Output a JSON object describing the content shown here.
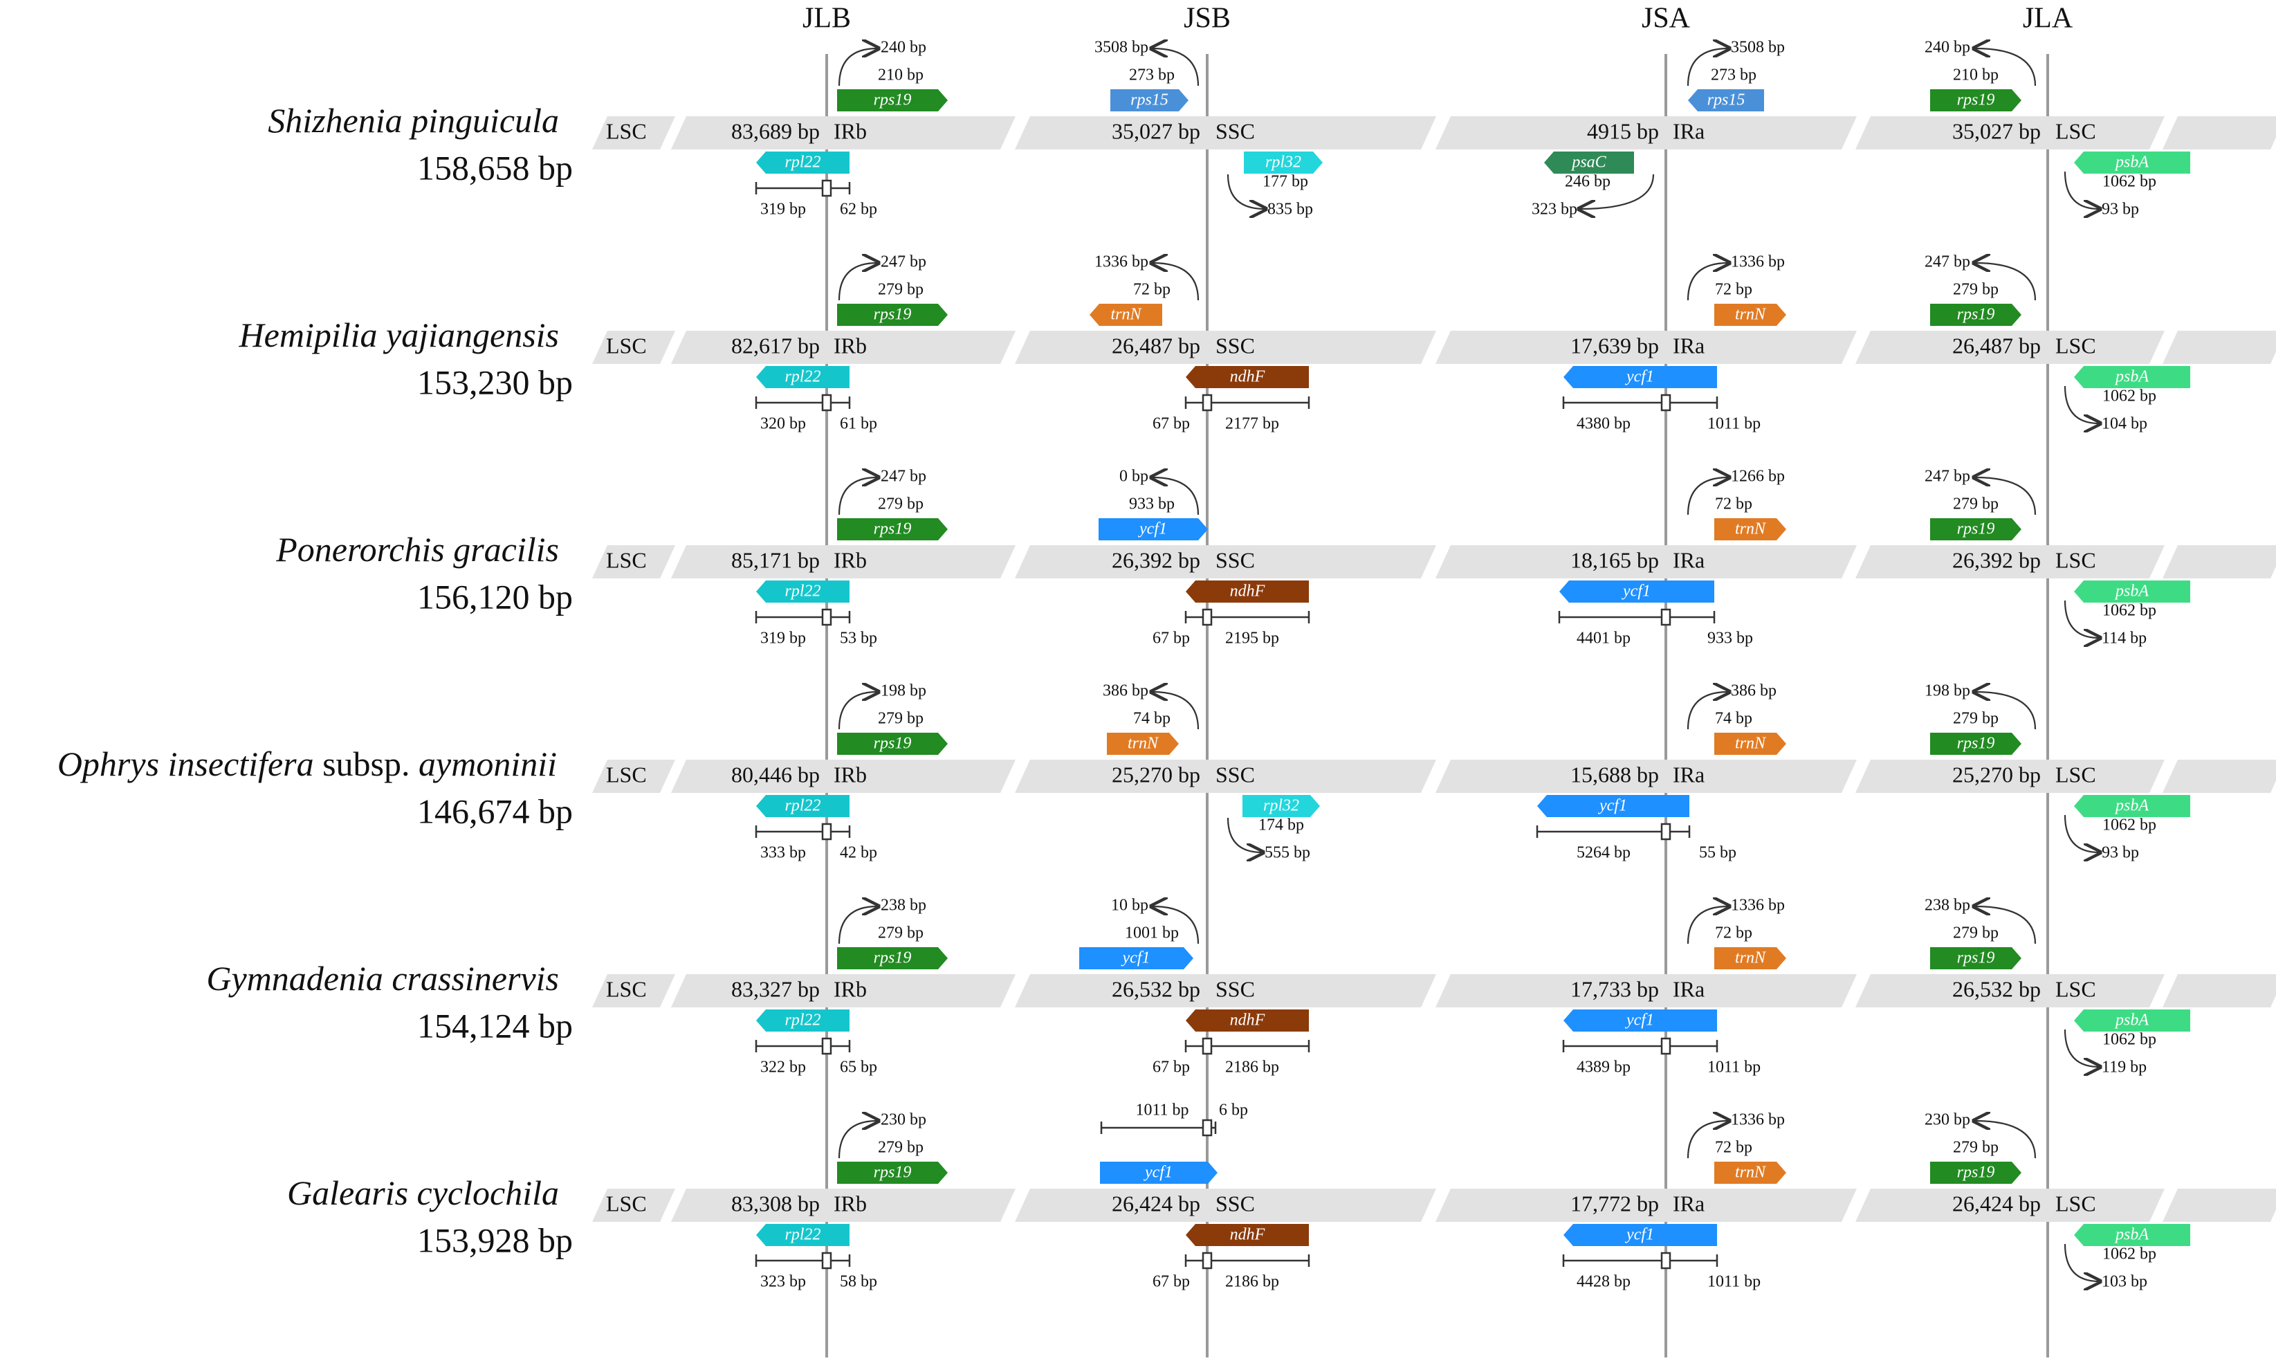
{
  "junctions": [
    "JLB",
    "JSB",
    "JSA",
    "JLA"
  ],
  "regions": [
    "LSC",
    "IRb",
    "SSC",
    "IRa",
    "LSC"
  ],
  "colors": {
    "band": "#e2e2e2",
    "junction_line": "#9a9a9a",
    "rpl22": "#14c6cc",
    "rps19": "#228b22",
    "rps15": "#4a90d9",
    "rpl32": "#22d6dc",
    "psaC": "#2e8b57",
    "psbA": "#3ddc84",
    "trnN": "#e07b24",
    "ndhF": "#8b3a0a",
    "ycf1": "#1e90ff"
  },
  "species": [
    {
      "name": "Shizhenia pinguicula",
      "name_suffix": "",
      "size": "158,658 bp",
      "lsc_len": "83,689 bp",
      "irb_len": "35,027 bp",
      "ssc_len": "4915 bp",
      "ira_len": "35,027 bp",
      "genes": [
        {
          "name": "rpl22",
          "dir": "left"
        },
        {
          "name": "rps19",
          "dir": "right"
        },
        {
          "name": "rps15",
          "dir": "right"
        },
        {
          "name": "rpl32",
          "dir": "right"
        },
        {
          "name": "psaC",
          "dir": "left"
        },
        {
          "name": "rps15",
          "dir": "left"
        },
        {
          "name": "rps19",
          "dir": "right"
        },
        {
          "name": "psbA",
          "dir": "left"
        }
      ],
      "labels": {
        "jlb_left": "319 bp",
        "jlb_right": "62 bp",
        "jlb_up_outer": "240 bp",
        "jlb_up_inner": "210 bp",
        "jsb_up_outer": "3508 bp",
        "jsb_up_inner": "273 bp",
        "jsb_down_a": "177 bp",
        "jsb_down_b": "835 bp",
        "jsa_down_a": "246 bp",
        "jsa_down_b": "323 bp",
        "jsa_up_outer": "3508 bp",
        "jsa_up_inner": "273 bp",
        "jla_up_outer": "240 bp",
        "jla_up_inner": "210 bp",
        "jla_down_a": "1062 bp",
        "jla_down_b": "93 bp"
      }
    },
    {
      "name": "Hemipilia yajiangensis",
      "name_suffix": "",
      "size": "153,230 bp",
      "lsc_len": "82,617 bp",
      "irb_len": "26,487 bp",
      "ssc_len": "17,639 bp",
      "ira_len": "26,487 bp",
      "genes": [
        {
          "name": "rpl22",
          "dir": "left"
        },
        {
          "name": "rps19",
          "dir": "right"
        },
        {
          "name": "trnN",
          "dir": "left"
        },
        {
          "name": "ndhF",
          "dir": "left"
        },
        {
          "name": "ycf1",
          "dir": "left"
        },
        {
          "name": "trnN",
          "dir": "right"
        },
        {
          "name": "rps19",
          "dir": "right"
        },
        {
          "name": "psbA",
          "dir": "left"
        }
      ],
      "labels": {
        "jlb_left": "320 bp",
        "jlb_right": "61 bp",
        "jlb_up_outer": "247 bp",
        "jlb_up_inner": "279 bp",
        "jsb_up_outer": "1336 bp",
        "jsb_up_inner": "72 bp",
        "jsb_left": "67 bp",
        "jsb_right": "2177 bp",
        "jsa_left": "4380 bp",
        "jsa_right": "1011 bp",
        "jsa_up_outer": "1336 bp",
        "jsa_up_inner": "72 bp",
        "jla_up_outer": "247 bp",
        "jla_up_inner": "279 bp",
        "jla_down_a": "1062 bp",
        "jla_down_b": "104 bp"
      }
    },
    {
      "name": "Ponerorchis gracilis",
      "name_suffix": "",
      "size": "156,120 bp",
      "lsc_len": "85,171 bp",
      "irb_len": "26,392 bp",
      "ssc_len": "18,165 bp",
      "ira_len": "26,392 bp",
      "genes": [
        {
          "name": "rpl22",
          "dir": "left"
        },
        {
          "name": "rps19",
          "dir": "right"
        },
        {
          "name": "ycf1",
          "dir": "right"
        },
        {
          "name": "ndhF",
          "dir": "left"
        },
        {
          "name": "ycf1",
          "dir": "left"
        },
        {
          "name": "trnN",
          "dir": "right"
        },
        {
          "name": "rps19",
          "dir": "right"
        },
        {
          "name": "psbA",
          "dir": "left"
        }
      ],
      "labels": {
        "jlb_left": "319 bp",
        "jlb_right": "53 bp",
        "jlb_up_outer": "247 bp",
        "jlb_up_inner": "279 bp",
        "jsb_up_outer": "0 bp",
        "jsb_up_inner": "933 bp",
        "jsb_left": "67 bp",
        "jsb_right": "2195 bp",
        "jsa_left": "4401 bp",
        "jsa_right": "933 bp",
        "jsa_up_outer": "1266 bp",
        "jsa_up_inner": "72 bp",
        "jla_up_outer": "247 bp",
        "jla_up_inner": "279 bp",
        "jla_down_a": "1062 bp",
        "jla_down_b": "114 bp"
      }
    },
    {
      "name": "Ophrys insectifera",
      "name_suffix": " subsp. ",
      "name_tail": "aymoninii",
      "size": "146,674 bp",
      "lsc_len": "80,446 bp",
      "irb_len": "25,270 bp",
      "ssc_len": "15,688 bp",
      "ira_len": "25,270 bp",
      "genes": [
        {
          "name": "rpl22",
          "dir": "left"
        },
        {
          "name": "rps19",
          "dir": "right"
        },
        {
          "name": "trnN",
          "dir": "right"
        },
        {
          "name": "rpl32",
          "dir": "right"
        },
        {
          "name": "ycf1",
          "dir": "left"
        },
        {
          "name": "trnN",
          "dir": "right"
        },
        {
          "name": "rps19",
          "dir": "right"
        },
        {
          "name": "psbA",
          "dir": "left"
        }
      ],
      "labels": {
        "jlb_left": "333 bp",
        "jlb_right": "42 bp",
        "jlb_up_outer": "198 bp",
        "jlb_up_inner": "279 bp",
        "jsb_up_outer": "386 bp",
        "jsb_up_inner": "74 bp",
        "jsb_down_a": "174 bp",
        "jsb_down_b": "555 bp",
        "jsa_left": "5264 bp",
        "jsa_right": "55 bp",
        "jsa_up_outer": "386 bp",
        "jsa_up_inner": "74 bp",
        "jla_up_outer": "198 bp",
        "jla_up_inner": "279 bp",
        "jla_down_a": "1062 bp",
        "jla_down_b": "93 bp"
      }
    },
    {
      "name": "Gymnadenia crassinervis",
      "name_suffix": "",
      "size": "154,124 bp",
      "lsc_len": "83,327 bp",
      "irb_len": "26,532 bp",
      "ssc_len": "17,733 bp",
      "ira_len": "26,532 bp",
      "genes": [
        {
          "name": "rpl22",
          "dir": "left"
        },
        {
          "name": "rps19",
          "dir": "right"
        },
        {
          "name": "ycf1",
          "dir": "right"
        },
        {
          "name": "ndhF",
          "dir": "left"
        },
        {
          "name": "ycf1",
          "dir": "left"
        },
        {
          "name": "trnN",
          "dir": "right"
        },
        {
          "name": "rps19",
          "dir": "right"
        },
        {
          "name": "psbA",
          "dir": "left"
        }
      ],
      "labels": {
        "jlb_left": "322 bp",
        "jlb_right": "65 bp",
        "jlb_up_outer": "238 bp",
        "jlb_up_inner": "279 bp",
        "jsb_up_outer": "10 bp",
        "jsb_up_inner": "1001 bp",
        "jsb_left": "67 bp",
        "jsb_right": "2186 bp",
        "jsa_left": "4389 bp",
        "jsa_right": "1011 bp",
        "jsa_up_outer": "1336 bp",
        "jsa_up_inner": "72 bp",
        "jla_up_outer": "238 bp",
        "jla_up_inner": "279 bp",
        "jla_down_a": "1062 bp",
        "jla_down_b": "119 bp"
      }
    },
    {
      "name": "Galearis cyclochila",
      "name_suffix": "",
      "size": "153,928 bp",
      "lsc_len": "83,308 bp",
      "irb_len": "26,424 bp",
      "ssc_len": "17,772 bp",
      "ira_len": "26,424 bp",
      "genes": [
        {
          "name": "rpl22",
          "dir": "left"
        },
        {
          "name": "rps19",
          "dir": "right"
        },
        {
          "name": "ycf1",
          "dir": "right"
        },
        {
          "name": "ndhF",
          "dir": "left"
        },
        {
          "name": "ycf1",
          "dir": "left"
        },
        {
          "name": "trnN",
          "dir": "right"
        },
        {
          "name": "rps19",
          "dir": "right"
        },
        {
          "name": "psbA",
          "dir": "left"
        }
      ],
      "labels": {
        "jlb_left": "323 bp",
        "jlb_right": "58 bp",
        "jlb_up_outer": "230 bp",
        "jlb_up_inner": "279 bp",
        "jsb_bracket_left": "1011 bp",
        "jsb_bracket_right": "6 bp",
        "jsb_left": "67 bp",
        "jsb_right": "2186 bp",
        "jsa_left": "4428 bp",
        "jsa_right": "1011 bp",
        "jsa_up_outer": "1336 bp",
        "jsa_up_inner": "72 bp",
        "jla_up_outer": "230 bp",
        "jla_up_inner": "279 bp",
        "jla_down_a": "1062 bp",
        "jla_down_b": "103 bp"
      }
    }
  ]
}
